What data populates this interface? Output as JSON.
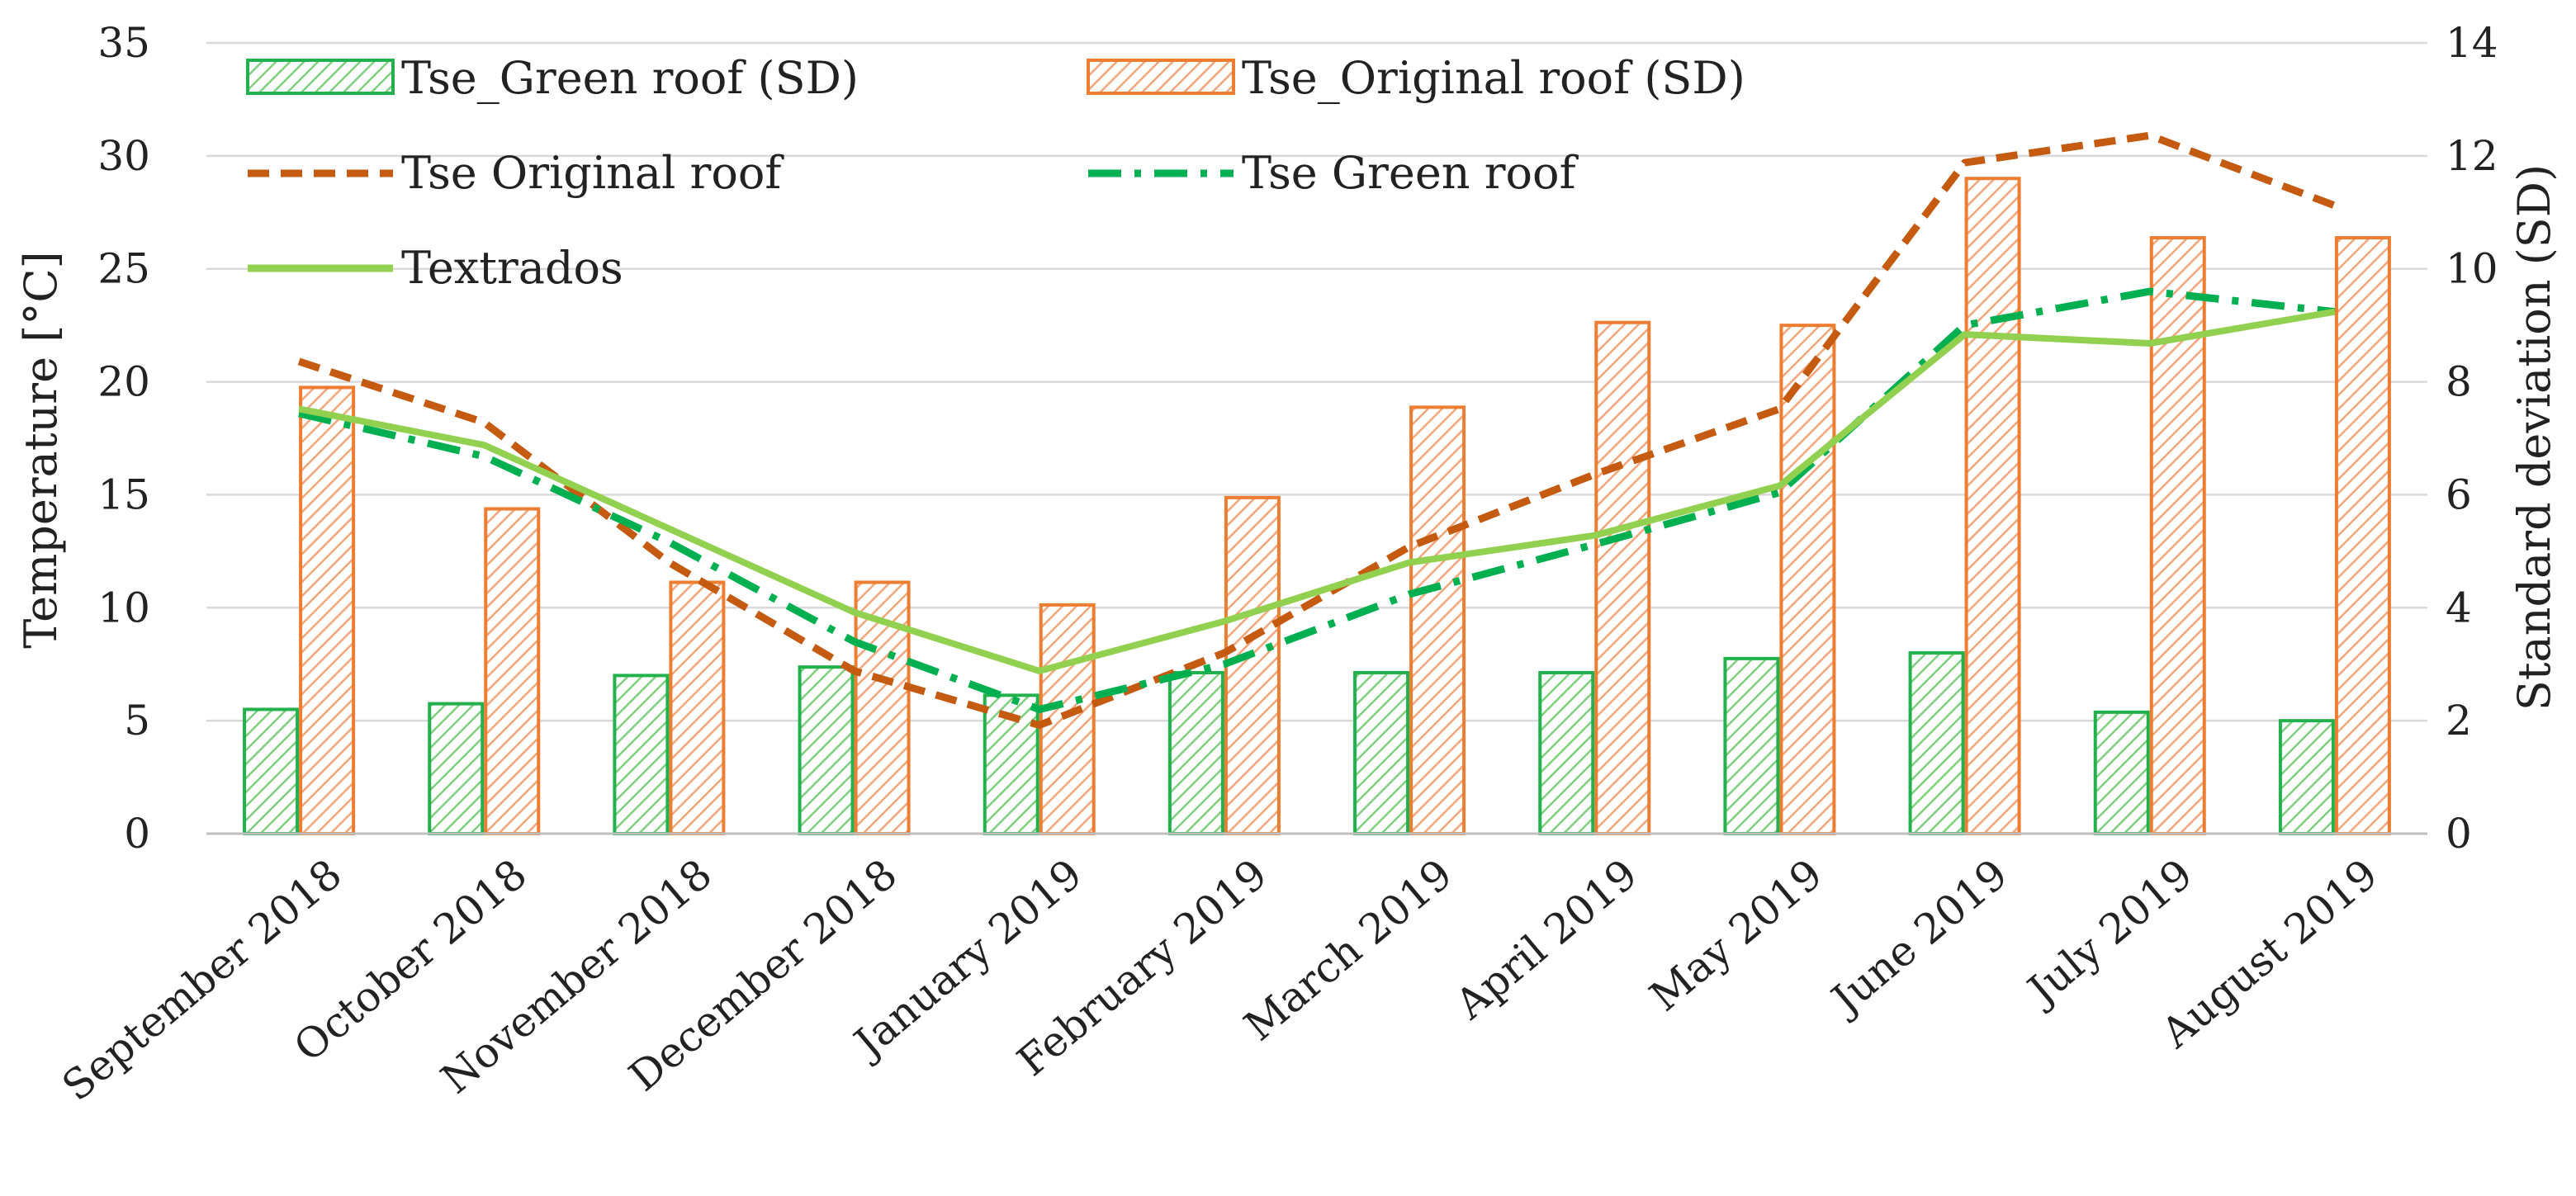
{
  "chart_data": {
    "type": "bar+line",
    "categories": [
      "September 2018",
      "October 2018",
      "November 2018",
      "December 2018",
      "January 2019",
      "February 2019",
      "March 2019",
      "April 2019",
      "May 2019",
      "June 2019",
      "July 2019",
      "August 2019"
    ],
    "bar_series": [
      {
        "name": "Tse_Green roof (SD)",
        "axis": "right",
        "color": "#22b14c",
        "values": [
          2.2,
          2.3,
          2.8,
          2.95,
          2.45,
          2.85,
          2.85,
          2.85,
          3.1,
          3.2,
          2.15,
          2.0
        ]
      },
      {
        "name": "Tse_Original roof (SD)",
        "axis": "right",
        "color": "#ed7d31",
        "values": [
          7.9,
          5.75,
          4.45,
          4.45,
          4.05,
          5.95,
          7.55,
          9.05,
          9.0,
          11.6,
          10.55,
          10.55
        ]
      }
    ],
    "line_series": [
      {
        "name": "Tse Original roof",
        "axis": "left",
        "color": "#c55a11",
        "style": "dashed",
        "values": [
          20.9,
          18.2,
          12.0,
          7.2,
          4.8,
          8.0,
          12.7,
          15.9,
          18.8,
          29.7,
          30.9,
          27.8
        ]
      },
      {
        "name": "Tse Green roof",
        "axis": "left",
        "color": "#00b050",
        "style": "dashdot",
        "values": [
          18.6,
          16.7,
          12.9,
          8.5,
          5.5,
          7.5,
          10.6,
          12.8,
          15.1,
          22.5,
          24.0,
          23.1
        ]
      },
      {
        "name": "Textrados",
        "axis": "left",
        "color": "#92d050",
        "style": "solid",
        "values": [
          18.8,
          17.2,
          13.5,
          9.8,
          7.2,
          9.4,
          12.0,
          13.2,
          15.4,
          22.1,
          21.7,
          23.1
        ]
      }
    ],
    "legend_order": [
      "Tse_Green roof (SD)",
      "Tse_Original roof (SD)",
      "Tse Original roof",
      "Tse Green roof",
      "Textrados"
    ],
    "y_left": {
      "label": "Temperature [°C]",
      "min": 0,
      "max": 35,
      "ticks": [
        0,
        5,
        10,
        15,
        20,
        25,
        30,
        35
      ]
    },
    "y_right": {
      "label": "Standard deviation (SD)",
      "min": 0,
      "max": 14,
      "ticks": [
        0,
        2,
        4,
        6,
        8,
        10,
        12,
        14
      ]
    },
    "grid": true,
    "legend_position": "top-left inside"
  }
}
